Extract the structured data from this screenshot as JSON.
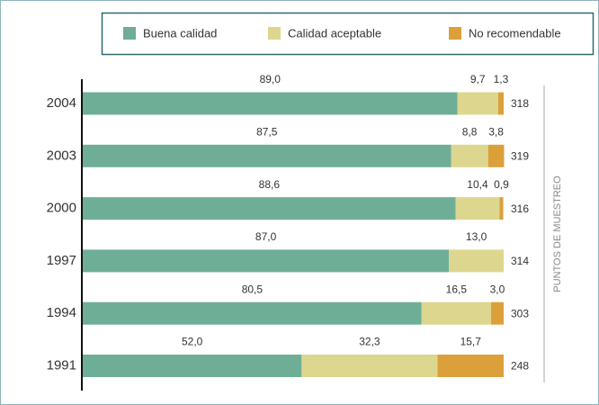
{
  "chart_data": {
    "type": "bar",
    "orientation": "horizontal",
    "stacked": true,
    "categories": [
      "2004",
      "2003",
      "2000",
      "1997",
      "1994",
      "1991"
    ],
    "series": [
      {
        "name": "Buena calidad",
        "color": "#6fae96",
        "values": [
          89.0,
          87.5,
          88.6,
          87.0,
          80.5,
          52.0
        ],
        "value_labels": [
          "89,0",
          "87,5",
          "88,6",
          "87,0",
          "80,5",
          "52,0"
        ]
      },
      {
        "name": "Calidad aceptable",
        "color": "#ddd68f",
        "values": [
          9.7,
          8.8,
          10.4,
          13.0,
          16.5,
          32.3
        ],
        "value_labels": [
          "9,7",
          "8,8",
          "10,4",
          "13,0",
          "16,5",
          "32,3"
        ]
      },
      {
        "name": "No recomendable",
        "color": "#dca03a",
        "values": [
          1.3,
          3.8,
          0.9,
          null,
          3.0,
          15.7
        ],
        "value_labels": [
          "1,3",
          "3,8",
          "0,9",
          null,
          "3,0",
          "15,7"
        ]
      }
    ],
    "xlim": [
      0,
      100
    ],
    "sample_points": {
      "label": "PUNTOS DE MUESTREO",
      "values": [
        318,
        319,
        316,
        314,
        303,
        248
      ]
    }
  }
}
